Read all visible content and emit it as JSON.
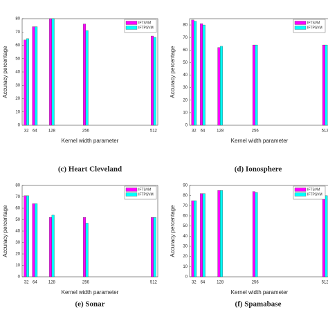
{
  "chart_data": [
    {
      "type": "bar",
      "caption": "(c) Heart Cleveland",
      "ylabel": "Accuracy percentage",
      "xlabel": "Kernel width parameter",
      "x": [
        32,
        64,
        128,
        256,
        512
      ],
      "xlim": [
        16,
        528
      ],
      "xticks": [
        32,
        64,
        128,
        256,
        512
      ],
      "ylim": [
        0,
        80
      ],
      "yticks": [
        0,
        10,
        20,
        30,
        40,
        50,
        60,
        70,
        80
      ],
      "legend": "upper right",
      "series": [
        {
          "name": "IFTSVM",
          "color": "#ff00ff",
          "values": [
            64,
            74,
            80,
            76,
            67
          ]
        },
        {
          "name": "IFTPSVM",
          "color": "#00ffff",
          "values": [
            65,
            74,
            80,
            71,
            66
          ]
        }
      ]
    },
    {
      "type": "bar",
      "caption": "(d) Ionosphere",
      "ylabel": "Accuracy percentage",
      "xlabel": "Kernel width parameter",
      "x": [
        32,
        64,
        128,
        256,
        512
      ],
      "xlim": [
        16,
        528
      ],
      "xticks": [
        32,
        64,
        128,
        256,
        512
      ],
      "ylim": [
        0,
        85
      ],
      "yticks": [
        0,
        10,
        20,
        30,
        40,
        50,
        60,
        70,
        80
      ],
      "legend": "upper right",
      "series": [
        {
          "name": "IFTSVM",
          "color": "#ff00ff",
          "values": [
            84,
            81,
            62,
            64,
            64
          ]
        },
        {
          "name": "IFTPSVM",
          "color": "#00ffff",
          "values": [
            83,
            80,
            63,
            64,
            64
          ]
        }
      ]
    },
    {
      "type": "bar",
      "caption": "(e) Sonar",
      "ylabel": "Accuracy percentage",
      "xlabel": "Kernel width parameter",
      "x": [
        32,
        64,
        128,
        256,
        512
      ],
      "xlim": [
        16,
        528
      ],
      "xticks": [
        32,
        64,
        128,
        256,
        512
      ],
      "ylim": [
        0,
        80
      ],
      "yticks": [
        0,
        10,
        20,
        30,
        40,
        50,
        60,
        70,
        80
      ],
      "legend": "upper right",
      "series": [
        {
          "name": "IFTSVM",
          "color": "#ff00ff",
          "values": [
            71,
            64,
            52,
            52,
            52
          ]
        },
        {
          "name": "IFTPSVM",
          "color": "#00ffff",
          "values": [
            71,
            64,
            54,
            47,
            52
          ]
        }
      ]
    },
    {
      "type": "bar",
      "caption": "(f) Spamabase",
      "ylabel": "Accuracy percentage",
      "xlabel": "Kernel width parameter",
      "x": [
        32,
        64,
        128,
        256,
        512
      ],
      "xlim": [
        16,
        528
      ],
      "xticks": [
        32,
        64,
        128,
        256,
        512
      ],
      "ylim": [
        0,
        90
      ],
      "yticks": [
        0,
        10,
        20,
        30,
        40,
        50,
        60,
        70,
        80,
        90
      ],
      "legend": "upper right",
      "series": [
        {
          "name": "IFTSVM",
          "color": "#ff00ff",
          "values": [
            75,
            82,
            85,
            84,
            80
          ]
        },
        {
          "name": "IFTPSVM",
          "color": "#00ffff",
          "values": [
            75,
            82,
            85,
            83,
            80
          ]
        }
      ]
    }
  ]
}
